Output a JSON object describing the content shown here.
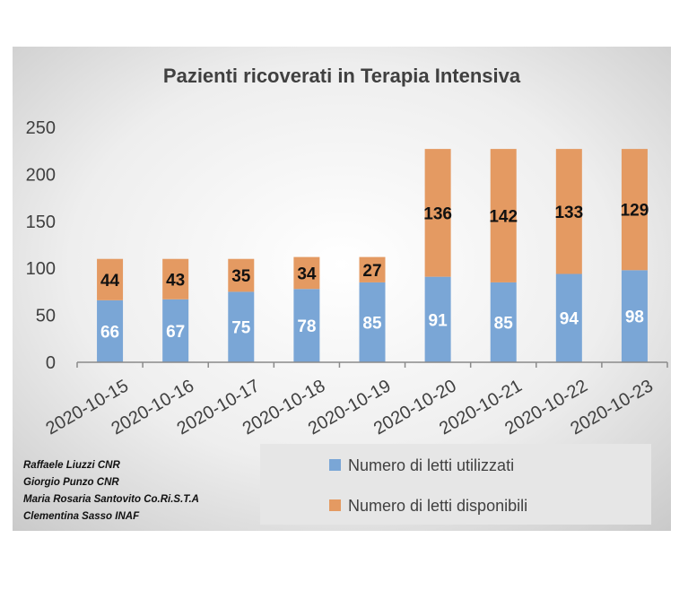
{
  "chart_data": {
    "type": "bar",
    "stacked": true,
    "title": "Pazienti ricoverati in Terapia Intensiva",
    "categories": [
      "2020-10-15",
      "2020-10-16",
      "2020-10-17",
      "2020-10-18",
      "2020-10-19",
      "2020-10-20",
      "2020-10-21",
      "2020-10-22",
      "2020-10-23"
    ],
    "series": [
      {
        "name": "Numero di letti utilizzati",
        "color": "#7aa6d6",
        "values": [
          66,
          67,
          75,
          78,
          85,
          91,
          85,
          94,
          98
        ]
      },
      {
        "name": "Numero di letti disponibili",
        "color": "#e49a62",
        "values": [
          44,
          43,
          35,
          34,
          27,
          136,
          142,
          133,
          129
        ]
      }
    ],
    "ylim": [
      0,
      250
    ],
    "yticks": [
      0,
      50,
      100,
      150,
      200,
      250
    ],
    "grid": false,
    "legend_position": "bottom-right"
  },
  "credits": [
    "Raffaele  Liuzzi CNR",
    "Giorgio Punzo CNR",
    "Maria Rosaria Santovito Co.Ri.S.T.A",
    "Clementina Sasso INAF"
  ]
}
